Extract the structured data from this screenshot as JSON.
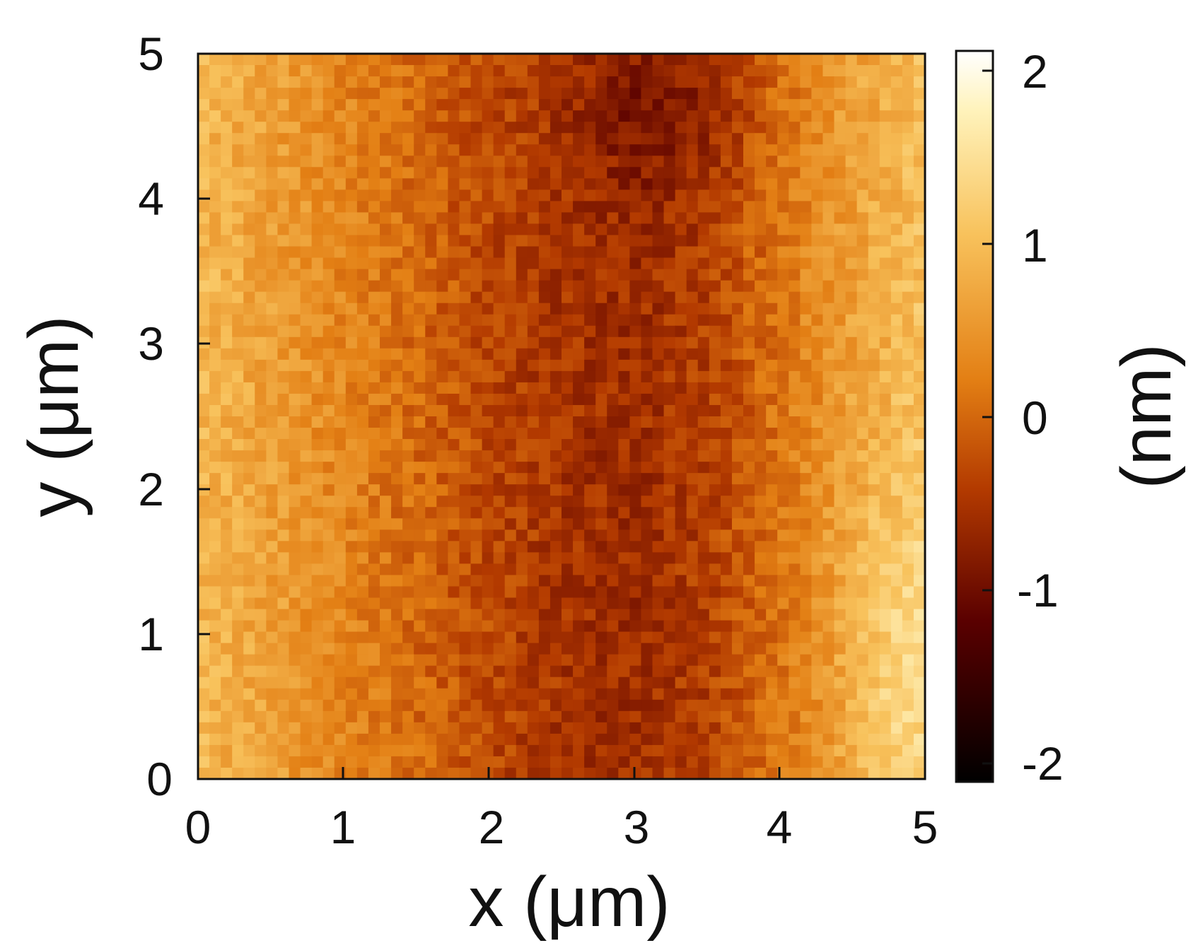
{
  "chart_data": {
    "type": "heatmap",
    "title": "",
    "xlabel": "x (μm)",
    "ylabel": "y (μm)",
    "xlim": [
      0,
      5
    ],
    "ylim": [
      0,
      5
    ],
    "x_ticks": [
      "0",
      "1",
      "2",
      "3",
      "4",
      "5"
    ],
    "y_ticks": [
      "0",
      "1",
      "2",
      "3",
      "4",
      "5"
    ],
    "colorbar": {
      "label": "(nm)",
      "range": [
        -2.1,
        2.1
      ],
      "ticks": [
        "2",
        "1",
        "0",
        "-1",
        "-2"
      ],
      "tick_values": [
        2,
        1,
        0,
        -1,
        -2
      ],
      "colormap_stops": [
        "#000000",
        "#5a0000",
        "#b33a00",
        "#e37f14",
        "#f8c25c",
        "#fff3bc",
        "#ffffff"
      ]
    },
    "z_columns_approx_nm": [
      0.9,
      0.6,
      0.3,
      0.0,
      -0.3,
      -0.5,
      -0.6,
      -0.4,
      0.1,
      0.6,
      1.0
    ],
    "grid": false
  }
}
